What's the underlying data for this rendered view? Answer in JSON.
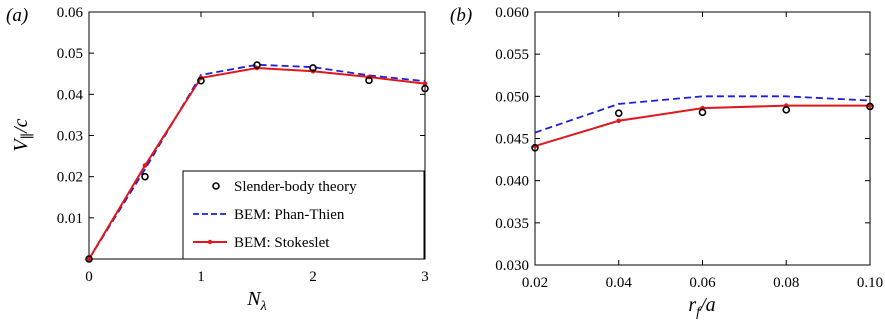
{
  "chart_data": [
    {
      "panel": "(a)",
      "type": "line",
      "xlabel": "N_λ",
      "ylabel": "V_∥/c",
      "xlim": [
        0,
        3
      ],
      "ylim": [
        0,
        0.06
      ],
      "xticks": [
        "0",
        "1",
        "2",
        "3"
      ],
      "yticks": [
        "0.01",
        "0.02",
        "0.03",
        "0.04",
        "0.05",
        "0.06"
      ],
      "grid": false,
      "legend_placement": "bottom-right",
      "series": [
        {
          "name": "Slender-body theory",
          "style": "markers",
          "color": "#000000",
          "x": [
            0,
            0.5,
            1.0,
            1.5,
            2.0,
            2.5,
            3.0
          ],
          "y": [
            0,
            0.02,
            0.0433,
            0.0471,
            0.0464,
            0.0434,
            0.0414
          ]
        },
        {
          "name": "BEM: Phan-Thien",
          "style": "dashed",
          "color": "#1f1fe0",
          "x": [
            0,
            0.5,
            1.0,
            1.5,
            2.0,
            2.5,
            3.0
          ],
          "y": [
            0,
            0.0218,
            0.0447,
            0.0472,
            0.0466,
            0.0446,
            0.0432
          ]
        },
        {
          "name": "BEM: Stokeslet",
          "style": "solid-dots",
          "color": "#e0181c",
          "x": [
            0,
            0.5,
            1.0,
            1.5,
            2.0,
            2.5,
            3.0
          ],
          "y": [
            0,
            0.0227,
            0.044,
            0.0464,
            0.0456,
            0.0442,
            0.0426
          ]
        }
      ]
    },
    {
      "panel": "(b)",
      "type": "line",
      "xlabel": "r_f/a",
      "ylabel": "",
      "xlim": [
        0.02,
        0.1
      ],
      "ylim": [
        0.03,
        0.06
      ],
      "xticks": [
        "0.02",
        "0.04",
        "0.06",
        "0.08",
        "0.10"
      ],
      "yticks": [
        "0.030",
        "0.035",
        "0.040",
        "0.045",
        "0.050",
        "0.055",
        "0.060"
      ],
      "grid": false,
      "series": [
        {
          "name": "Slender-body theory",
          "style": "markers",
          "color": "#000000",
          "x": [
            0.02,
            0.04,
            0.06,
            0.08,
            0.1
          ],
          "y": [
            0.0439,
            0.048,
            0.0481,
            0.0484,
            0.0488
          ]
        },
        {
          "name": "BEM: Phan-Thien",
          "style": "dashed",
          "color": "#1f1fe0",
          "x": [
            0.02,
            0.04,
            0.06,
            0.08,
            0.1
          ],
          "y": [
            0.0457,
            0.0491,
            0.05,
            0.05,
            0.0495
          ]
        },
        {
          "name": "BEM: Stokeslet",
          "style": "solid-dots",
          "color": "#e0181c",
          "x": [
            0.02,
            0.04,
            0.06,
            0.08,
            0.1
          ],
          "y": [
            0.0441,
            0.0471,
            0.0486,
            0.0489,
            0.0489
          ]
        }
      ]
    }
  ]
}
